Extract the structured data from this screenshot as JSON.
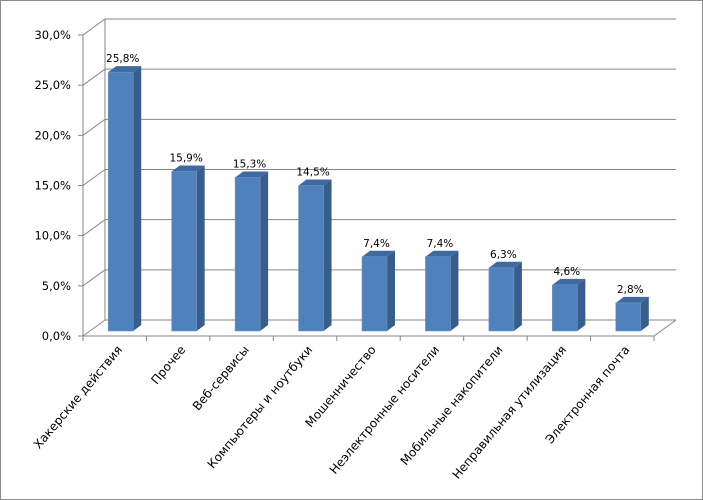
{
  "chart_data": {
    "type": "bar",
    "title": "",
    "xlabel": "",
    "ylabel": "",
    "ylim": [
      0,
      30
    ],
    "yticks": [
      "0,0%",
      "5,0%",
      "10,0%",
      "15,0%",
      "20,0%",
      "25,0%",
      "30,0%"
    ],
    "grid": true,
    "categories": [
      "Хакерские действия",
      "Прочее",
      "Веб-сервисы",
      "Компьютеры и ноутбуки",
      "Мошенничество",
      "Неэлектронные носители",
      "Мобильные накопители",
      "Неправильная утилизация",
      "Электронная почта"
    ],
    "values": [
      25.8,
      15.9,
      15.3,
      14.5,
      7.4,
      7.4,
      6.3,
      4.6,
      2.8
    ],
    "data_labels": [
      "25,8%",
      "15,9%",
      "15,3%",
      "14,5%",
      "7,4%",
      "7,4%",
      "6,3%",
      "4,6%",
      "2,8%"
    ],
    "colors": {
      "front": "#4f81bd",
      "side": "#385d8a",
      "top": "#3f6aa0"
    }
  }
}
